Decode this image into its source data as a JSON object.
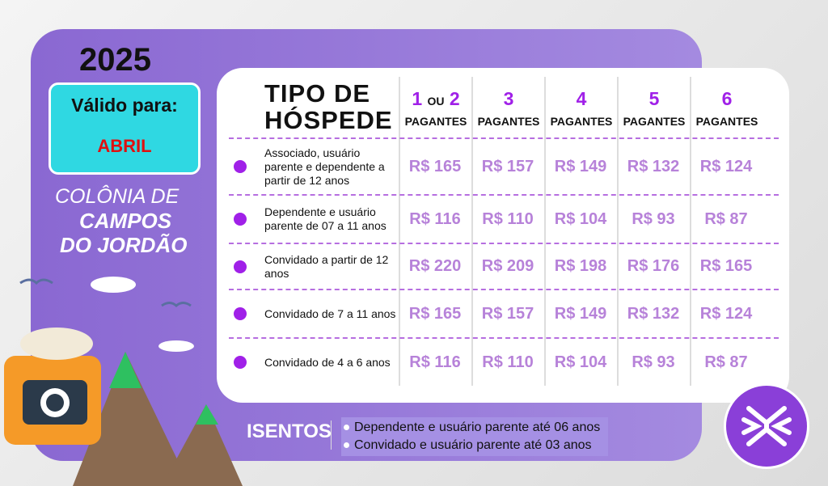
{
  "year": "2025",
  "valid": {
    "label": "Válido para:",
    "month": "ABRIL"
  },
  "place": {
    "line1": "COLÔNIA DE",
    "line2": "CAMPOS",
    "line3": "DO JORDÃO"
  },
  "table": {
    "type_header": [
      "TIPO DE",
      "HÓSPEDE"
    ],
    "columns": [
      {
        "num": "1",
        "mid": "OU",
        "num2": "2",
        "label": "PAGANTES"
      },
      {
        "num": "3",
        "label": "PAGANTES"
      },
      {
        "num": "4",
        "label": "PAGANTES"
      },
      {
        "num": "5",
        "label": "PAGANTES"
      },
      {
        "num": "6",
        "label": "PAGANTES"
      }
    ],
    "rows": [
      {
        "label": "Associado, usuário parente e dependente a partir de 12 anos",
        "prices": [
          "R$ 165",
          "R$ 157",
          "R$ 149",
          "R$ 132",
          "R$ 124"
        ]
      },
      {
        "label": "Dependente e usuário parente de 07 a 11 anos",
        "prices": [
          "R$ 116",
          "R$ 110",
          "R$ 104",
          "R$ 93",
          "R$ 87"
        ]
      },
      {
        "label": "Convidado a partir de 12 anos",
        "prices": [
          "R$ 220",
          "R$ 209",
          "R$ 198",
          "R$ 176",
          "R$ 165"
        ]
      },
      {
        "label": "Convidado de 7 a 11 anos",
        "prices": [
          "R$ 165",
          "R$ 157",
          "R$ 149",
          "R$ 132",
          "R$ 124"
        ]
      },
      {
        "label": "Convidado de 4 a 6 anos",
        "prices": [
          "R$ 116",
          "R$ 110",
          "R$ 104",
          "R$ 93",
          "R$ 87"
        ]
      }
    ]
  },
  "isentos": {
    "title": "ISENTOS",
    "items": [
      "Dependente e usuário parente até 06 anos",
      "Convidado e usuário parente até 03 anos"
    ]
  },
  "colors": {
    "background": "#8a68d2",
    "accent": "#a020e8",
    "price": "#b782d9",
    "valid_box": "#2fd8e2",
    "month": "#e01010"
  }
}
